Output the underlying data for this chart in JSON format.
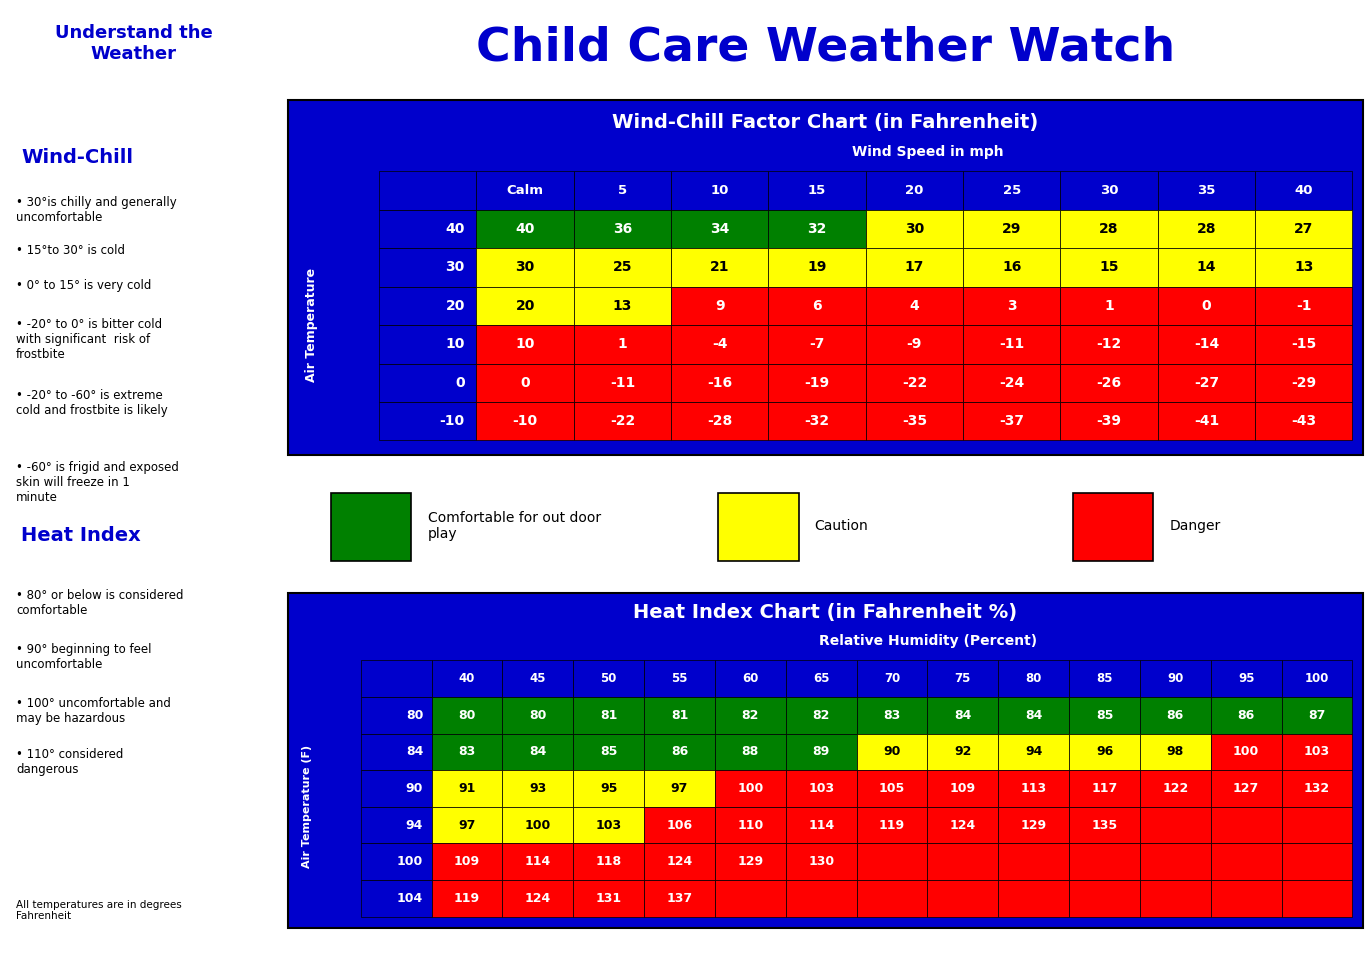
{
  "main_title": "Child Care Weather Watch",
  "left_title": "Understand the\nWeather",
  "left_windchill_title": "Wind-Chill",
  "left_footnote": "All temperatures are in degrees\nFahrenheit",
  "wc_title": "Wind-Chill Factor Chart (in Fahrenheit)",
  "wc_subtitle": "Wind Speed in mph",
  "wc_col_headers": [
    "Calm",
    "5",
    "10",
    "15",
    "20",
    "25",
    "30",
    "35",
    "40"
  ],
  "wc_row_headers": [
    "40",
    "30",
    "20",
    "10",
    "0",
    "-10"
  ],
  "wc_data": [
    [
      40,
      36,
      34,
      32,
      30,
      29,
      28,
      28,
      27
    ],
    [
      30,
      25,
      21,
      19,
      17,
      16,
      15,
      14,
      13
    ],
    [
      20,
      13,
      9,
      6,
      4,
      3,
      1,
      0,
      -1
    ],
    [
      10,
      1,
      -4,
      -7,
      -9,
      -11,
      -12,
      -14,
      -15
    ],
    [
      0,
      -11,
      -16,
      -19,
      -22,
      -24,
      -26,
      -27,
      -29
    ],
    [
      -10,
      -22,
      -28,
      -32,
      -35,
      -37,
      -39,
      -41,
      -43
    ]
  ],
  "wc_colors": [
    [
      "#008000",
      "#008000",
      "#008000",
      "#008000",
      "#FFFF00",
      "#FFFF00",
      "#FFFF00",
      "#FFFF00",
      "#FFFF00"
    ],
    [
      "#FFFF00",
      "#FFFF00",
      "#FFFF00",
      "#FFFF00",
      "#FFFF00",
      "#FFFF00",
      "#FFFF00",
      "#FFFF00",
      "#FFFF00"
    ],
    [
      "#FFFF00",
      "#FFFF00",
      "#FF0000",
      "#FF0000",
      "#FF0000",
      "#FF0000",
      "#FF0000",
      "#FF0000",
      "#FF0000"
    ],
    [
      "#FF0000",
      "#FF0000",
      "#FF0000",
      "#FF0000",
      "#FF0000",
      "#FF0000",
      "#FF0000",
      "#FF0000",
      "#FF0000"
    ],
    [
      "#FF0000",
      "#FF0000",
      "#FF0000",
      "#FF0000",
      "#FF0000",
      "#FF0000",
      "#FF0000",
      "#FF0000",
      "#FF0000"
    ],
    [
      "#FF0000",
      "#FF0000",
      "#FF0000",
      "#FF0000",
      "#FF0000",
      "#FF0000",
      "#FF0000",
      "#FF0000",
      "#FF0000"
    ]
  ],
  "hi_title": "Heat Index Chart (in Fahrenheit %)",
  "hi_subtitle": "Relative Humidity (Percent)",
  "hi_col_headers": [
    "40",
    "45",
    "50",
    "55",
    "60",
    "65",
    "70",
    "75",
    "80",
    "85",
    "90",
    "95",
    "100"
  ],
  "hi_row_headers": [
    "80",
    "84",
    "90",
    "94",
    "100",
    "104"
  ],
  "hi_data": [
    [
      80,
      80,
      81,
      81,
      82,
      82,
      83,
      84,
      84,
      85,
      86,
      86,
      87
    ],
    [
      83,
      84,
      85,
      86,
      88,
      89,
      90,
      92,
      94,
      96,
      98,
      100,
      103
    ],
    [
      91,
      93,
      95,
      97,
      100,
      103,
      105,
      109,
      113,
      117,
      122,
      127,
      132
    ],
    [
      97,
      100,
      103,
      106,
      110,
      114,
      119,
      124,
      129,
      135,
      null,
      null,
      null
    ],
    [
      109,
      114,
      118,
      124,
      129,
      130,
      null,
      null,
      null,
      null,
      null,
      null,
      null
    ],
    [
      119,
      124,
      131,
      137,
      null,
      null,
      null,
      null,
      null,
      null,
      null,
      null,
      null
    ]
  ],
  "hi_colors": [
    [
      "#008000",
      "#008000",
      "#008000",
      "#008000",
      "#008000",
      "#008000",
      "#008000",
      "#008000",
      "#008000",
      "#008000",
      "#008000",
      "#008000",
      "#008000"
    ],
    [
      "#008000",
      "#008000",
      "#008000",
      "#008000",
      "#008000",
      "#008000",
      "#FFFF00",
      "#FFFF00",
      "#FFFF00",
      "#FFFF00",
      "#FFFF00",
      "#FF0000",
      "#FF0000"
    ],
    [
      "#FFFF00",
      "#FFFF00",
      "#FFFF00",
      "#FFFF00",
      "#FF0000",
      "#FF0000",
      "#FF0000",
      "#FF0000",
      "#FF0000",
      "#FF0000",
      "#FF0000",
      "#FF0000",
      "#FF0000"
    ],
    [
      "#FFFF00",
      "#FFFF00",
      "#FFFF00",
      "#FF0000",
      "#FF0000",
      "#FF0000",
      "#FF0000",
      "#FF0000",
      "#FF0000",
      "#FF0000",
      "#FF0000",
      "#FF0000",
      "#FF0000"
    ],
    [
      "#FF0000",
      "#FF0000",
      "#FF0000",
      "#FF0000",
      "#FF0000",
      "#FF0000",
      "#FF0000",
      "#FF0000",
      "#FF0000",
      "#FF0000",
      "#FF0000",
      "#FF0000",
      "#FF0000"
    ],
    [
      "#FF0000",
      "#FF0000",
      "#FF0000",
      "#FF0000",
      "#FF0000",
      "#FF0000",
      "#FF0000",
      "#FF0000",
      "#FF0000",
      "#FF0000",
      "#FF0000",
      "#FF0000",
      "#FF0000"
    ]
  ],
  "legend_items": [
    {
      "color": "#008000",
      "label": "Comfortable for out door\nplay"
    },
    {
      "color": "#FFFF00",
      "label": "Caution"
    },
    {
      "color": "#FF0000",
      "label": "Danger"
    }
  ],
  "blue_bg": "#0000CC",
  "wc_bullet_texts": [
    "30°is chilly and generally\nuncomfortable",
    "15°to 30° is cold",
    "0° to 15° is very cold",
    "-20° to 0° is bitter cold\nwith significant  risk of\nfrostbite",
    "-20° to -60° is extreme\ncold and frostbite is likely",
    "-60° is frigid and exposed\nskin will freeze in 1\nminute"
  ],
  "hi_bullet_texts": [
    "80° or below is considered\ncomfortable",
    "90° beginning to feel\nuncomfortable",
    "100° uncomfortable and\nmay be hazardous",
    "110° considered\ndangerous"
  ]
}
